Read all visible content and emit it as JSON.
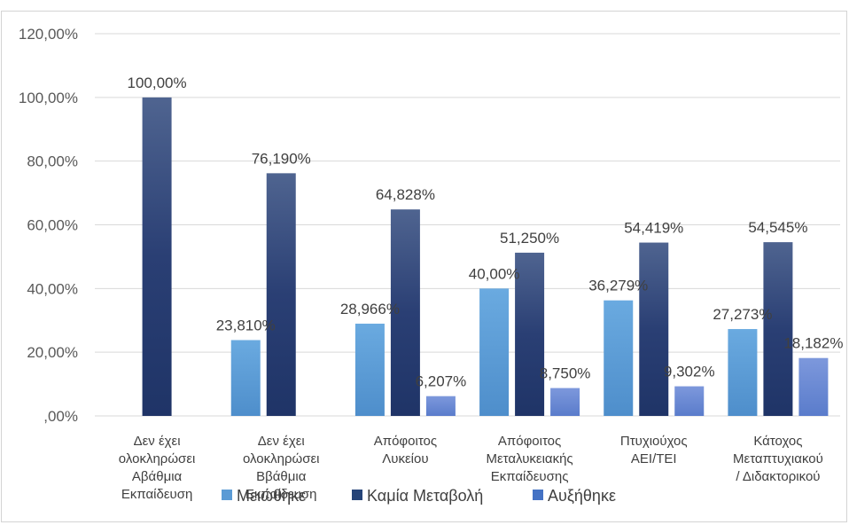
{
  "chart_data": {
    "type": "bar",
    "categories": [
      [
        "Δεν έχει",
        "ολοκληρώσει",
        "Αβάθμια",
        "Εκπαίδευση"
      ],
      [
        "Δεν έχει",
        "ολοκληρώσει",
        "Ββάθμια",
        "Εκπαίδευση"
      ],
      [
        "Απόφοιτος",
        "Λυκείου"
      ],
      [
        "Απόφοιτος",
        "Μεταλυκειακής",
        "Εκπαίδευσης"
      ],
      [
        "Πτυχιούχος",
        "ΑΕΙ/ΤΕΙ"
      ],
      [
        "Κάτοχος",
        "Μεταπτυχιακού",
        "/ Διδακτορικού"
      ]
    ],
    "series": [
      {
        "name": "Μειώθηκε",
        "color": "#5B9BD5",
        "values": [
          null,
          23.81,
          28.966,
          40.0,
          36.279,
          27.273
        ],
        "labels": [
          "",
          "23,810%",
          "28,966%",
          "40,00%",
          "36,279%",
          "27,273%"
        ]
      },
      {
        "name": "Καμία Μεταβολή",
        "color": "#264478",
        "values": [
          100.0,
          76.19,
          64.828,
          51.25,
          54.419,
          54.545
        ],
        "labels": [
          "100,00%",
          "76,190%",
          "64,828%",
          "51,250%",
          "54,419%",
          "54,545%"
        ]
      },
      {
        "name": "Αυξήθηκε",
        "color": "#4472C4",
        "values": [
          null,
          null,
          6.207,
          8.75,
          9.302,
          18.182
        ],
        "labels": [
          "",
          "",
          "6,207%",
          "8,750%",
          "9,302%",
          "18,182%"
        ]
      }
    ],
    "yticks": [
      0,
      20,
      40,
      60,
      80,
      100,
      120
    ],
    "ytick_labels": [
      ",00%",
      "20,00%",
      "40,00%",
      "60,00%",
      "80,00%",
      "100,00%",
      "120,00%"
    ],
    "ylim": [
      0,
      120
    ],
    "grid": true,
    "legend_position": "bottom"
  }
}
